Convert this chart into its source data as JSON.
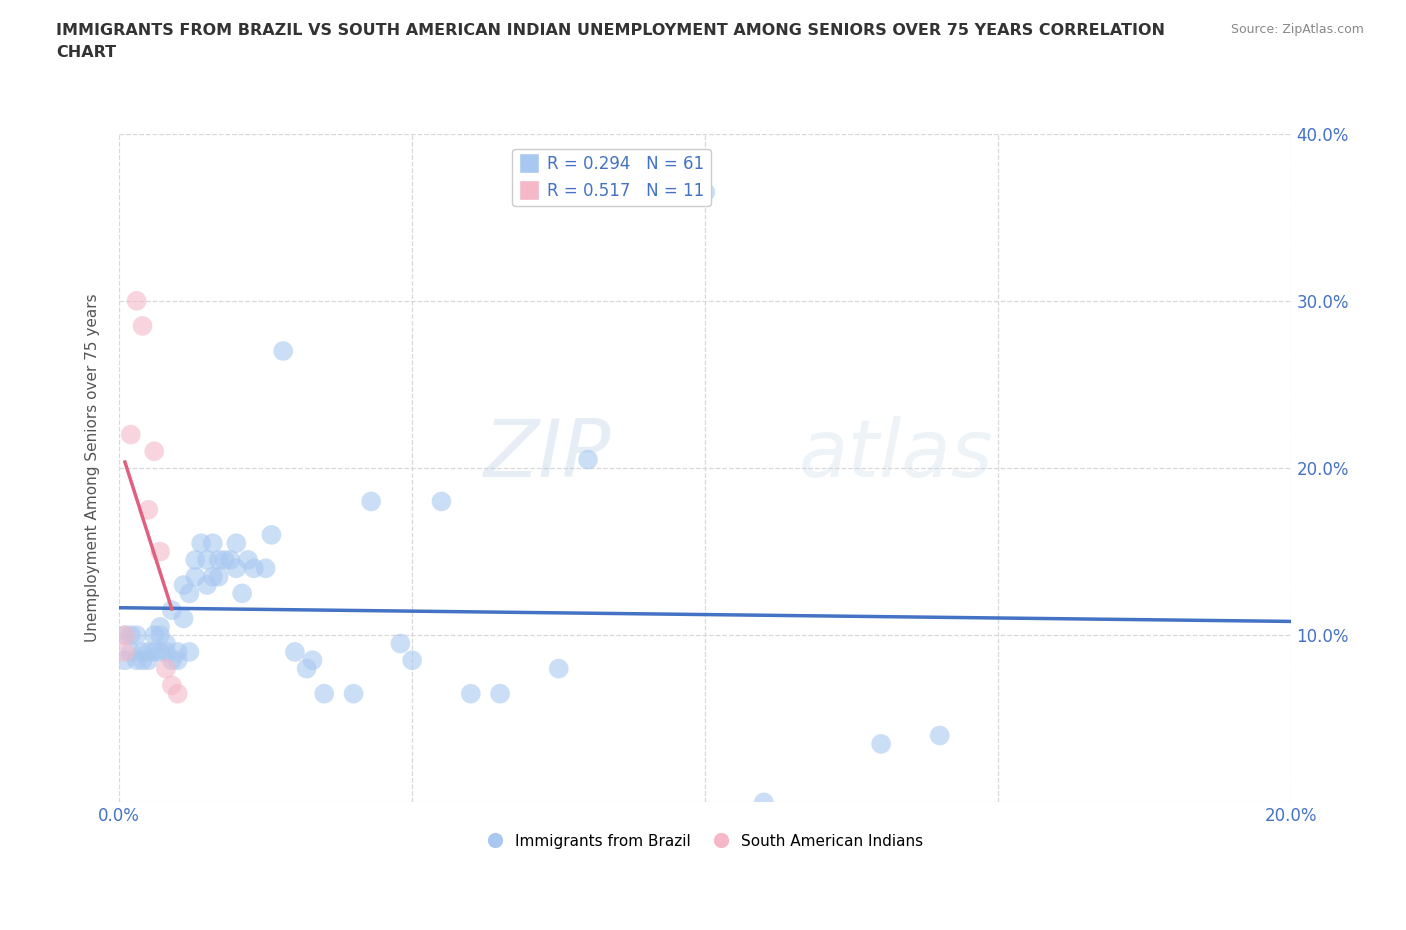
{
  "title": "IMMIGRANTS FROM BRAZIL VS SOUTH AMERICAN INDIAN UNEMPLOYMENT AMONG SENIORS OVER 75 YEARS CORRELATION\nCHART",
  "source": "Source: ZipAtlas.com",
  "ylabel_label": "Unemployment Among Seniors over 75 years",
  "watermark": "ZIPatlas",
  "xlim": [
    0.0,
    0.2
  ],
  "ylim": [
    0.0,
    0.4
  ],
  "xticks": [
    0.0,
    0.05,
    0.1,
    0.15,
    0.2
  ],
  "yticks": [
    0.0,
    0.1,
    0.2,
    0.3,
    0.4
  ],
  "xtick_labels": [
    "0.0%",
    "",
    "",
    "",
    "20.0%"
  ],
  "ytick_labels_right": [
    "",
    "10.0%",
    "20.0%",
    "30.0%",
    "40.0%"
  ],
  "brazil_R": 0.294,
  "brazil_N": 61,
  "indian_R": 0.517,
  "indian_N": 11,
  "brazil_color": "#a8c8f0",
  "indian_color": "#f4b8c8",
  "brazil_line_color": "#4472c4",
  "indian_line_color": "#e06080",
  "brazil_scatter": [
    [
      0.001,
      0.1
    ],
    [
      0.001,
      0.085
    ],
    [
      0.002,
      0.09
    ],
    [
      0.002,
      0.1
    ],
    [
      0.003,
      0.085
    ],
    [
      0.003,
      0.1
    ],
    [
      0.004,
      0.085
    ],
    [
      0.004,
      0.09
    ],
    [
      0.005,
      0.085
    ],
    [
      0.005,
      0.09
    ],
    [
      0.006,
      0.09
    ],
    [
      0.006,
      0.1
    ],
    [
      0.007,
      0.09
    ],
    [
      0.007,
      0.105
    ],
    [
      0.007,
      0.1
    ],
    [
      0.008,
      0.09
    ],
    [
      0.008,
      0.095
    ],
    [
      0.009,
      0.085
    ],
    [
      0.009,
      0.115
    ],
    [
      0.01,
      0.085
    ],
    [
      0.01,
      0.09
    ],
    [
      0.011,
      0.11
    ],
    [
      0.011,
      0.13
    ],
    [
      0.012,
      0.09
    ],
    [
      0.012,
      0.125
    ],
    [
      0.013,
      0.135
    ],
    [
      0.013,
      0.145
    ],
    [
      0.014,
      0.155
    ],
    [
      0.015,
      0.13
    ],
    [
      0.015,
      0.145
    ],
    [
      0.016,
      0.135
    ],
    [
      0.016,
      0.155
    ],
    [
      0.017,
      0.135
    ],
    [
      0.017,
      0.145
    ],
    [
      0.018,
      0.145
    ],
    [
      0.019,
      0.145
    ],
    [
      0.02,
      0.14
    ],
    [
      0.02,
      0.155
    ],
    [
      0.021,
      0.125
    ],
    [
      0.022,
      0.145
    ],
    [
      0.023,
      0.14
    ],
    [
      0.025,
      0.14
    ],
    [
      0.026,
      0.16
    ],
    [
      0.028,
      0.27
    ],
    [
      0.03,
      0.09
    ],
    [
      0.032,
      0.08
    ],
    [
      0.033,
      0.085
    ],
    [
      0.035,
      0.065
    ],
    [
      0.04,
      0.065
    ],
    [
      0.043,
      0.18
    ],
    [
      0.048,
      0.095
    ],
    [
      0.05,
      0.085
    ],
    [
      0.055,
      0.18
    ],
    [
      0.06,
      0.065
    ],
    [
      0.065,
      0.065
    ],
    [
      0.075,
      0.08
    ],
    [
      0.08,
      0.205
    ],
    [
      0.1,
      0.365
    ],
    [
      0.11,
      0.0
    ],
    [
      0.13,
      0.035
    ],
    [
      0.14,
      0.04
    ]
  ],
  "indian_scatter": [
    [
      0.001,
      0.09
    ],
    [
      0.001,
      0.1
    ],
    [
      0.002,
      0.22
    ],
    [
      0.003,
      0.3
    ],
    [
      0.004,
      0.285
    ],
    [
      0.005,
      0.175
    ],
    [
      0.006,
      0.21
    ],
    [
      0.007,
      0.15
    ],
    [
      0.008,
      0.08
    ],
    [
      0.009,
      0.07
    ],
    [
      0.01,
      0.065
    ]
  ],
  "background_color": "#ffffff",
  "grid_color": "#d8d8d8"
}
